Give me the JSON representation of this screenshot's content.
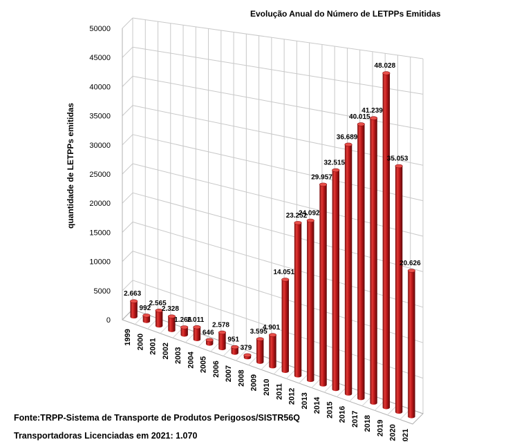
{
  "chart_data": {
    "type": "bar",
    "style": "3d-cylinder",
    "title": "Evolução Anual do Número de LETPPs Emitidas",
    "ylabel": "quantidade de LETPPs emitidas",
    "xlabel": "",
    "ylim": [
      0,
      50000
    ],
    "y_ticks": [
      "0",
      "5000",
      "10000",
      "15000",
      "20000",
      "25000",
      "30000",
      "35000",
      "40000",
      "45000",
      "50000"
    ],
    "grid": true,
    "legend": "none",
    "bar_color": "#c0191b",
    "categories": [
      "1999",
      "2000",
      "2001",
      "2002",
      "2003",
      "2004",
      "2005",
      "2006",
      "2007",
      "2008",
      "2009",
      "2010",
      "2011",
      "2012",
      "2013",
      "2014",
      "2015",
      "2016",
      "2017",
      "2018",
      "2019",
      "2020",
      "2021"
    ],
    "values": [
      2663,
      992,
      2565,
      2328,
      1266,
      2011,
      646,
      2578,
      951,
      379,
      3595,
      4901,
      14051,
      23252,
      24092,
      29957,
      32515,
      36689,
      40015,
      41239,
      48028,
      35053,
      20626
    ],
    "data_labels": [
      "2.663",
      "992",
      "2.565",
      "2.328",
      "1.266",
      "2.011",
      "646",
      "2.578",
      "951",
      "379",
      "3.595",
      "4.901",
      "14.051",
      "23.252",
      "24.092",
      "29.957",
      "32.515",
      "36.689",
      "40.015",
      "41.239",
      "48.028",
      "35.053",
      "20.626"
    ]
  },
  "footer": {
    "source": "Fonte:TRPP-Sistema de Transporte de Produtos Perigosos/SISTR56Q",
    "licensed": "Transportadoras Licenciadas em  2021: 1.070"
  }
}
